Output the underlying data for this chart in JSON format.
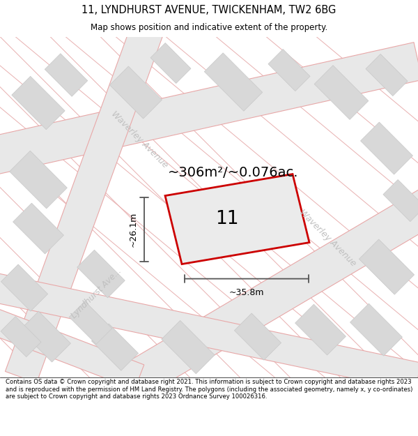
{
  "title_line1": "11, LYNDHURST AVENUE, TWICKENHAM, TW2 6BG",
  "title_line2": "Map shows position and indicative extent of the property.",
  "area_text": "~306m²/~0.076ac.",
  "property_number": "11",
  "width_label": "~35.8m",
  "height_label": "~26.1m",
  "street_label_wav1": "Waverley Avenue",
  "street_label_wav2": "Waverley Avenue",
  "street_label_lynd": "Lyndhurst Ave...",
  "footer": "Contains OS data © Crown copyright and database right 2021. This information is subject to Crown copyright and database rights 2023 and is reproduced with the permission of HM Land Registry. The polygons (including the associated geometry, namely x, y co-ordinates) are subject to Crown copyright and database rights 2023 Ordnance Survey 100026316.",
  "map_bg": "#ffffff",
  "road_fill": "#e8e8e8",
  "road_edge": "#e8a8a8",
  "block_fill": "#d8d8d8",
  "block_edge": "#c8c8c8",
  "prop_fill": "#ebebeb",
  "prop_edge": "#cc0000",
  "street_color": "#c0c0c0",
  "dim_color": "#555555",
  "title_color": "#000000",
  "footer_color": "#000000"
}
